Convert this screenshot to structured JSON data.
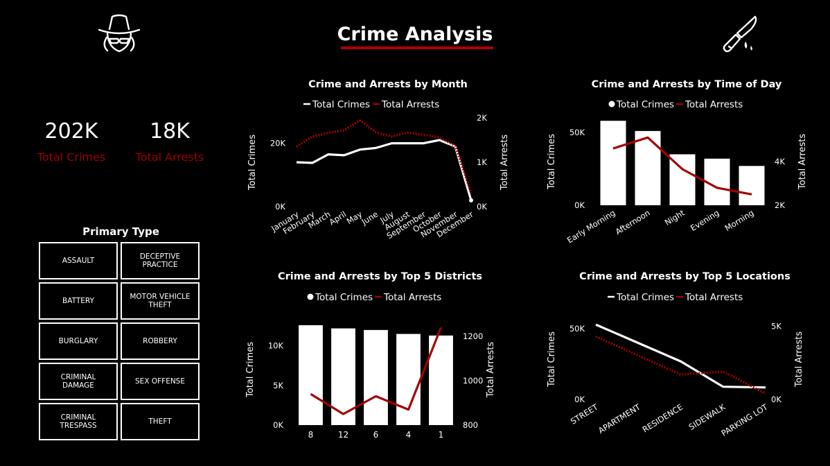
{
  "title": "Crime Analysis",
  "kpis": {
    "total_crimes_value": "202K",
    "total_crimes_label": "Total Crimes",
    "total_arrests_value": "18K",
    "total_arrests_label": "Total Arrests"
  },
  "slicer": {
    "title": "Primary Type",
    "items": [
      "ASSAULT",
      "DECEPTIVE PRACTICE",
      "BATTERY",
      "MOTOR VEHICLE THEFT",
      "BURGLARY",
      "ROBBERY",
      "CRIMINAL DAMAGE",
      "SEX OFFENSE",
      "CRIMINAL TRESPASS",
      "THEFT"
    ]
  },
  "icons": {
    "left": "detective-icon",
    "right": "knife-icon"
  },
  "colors": {
    "crimes": "#ffffff",
    "arrests": "#a50000",
    "background": "#000000"
  },
  "chart_data": [
    {
      "type": "line",
      "title": "Crime and Arrests by Month",
      "categories": [
        "January",
        "February",
        "March",
        "April",
        "May",
        "June",
        "July",
        "August",
        "September",
        "October",
        "November",
        "December"
      ],
      "series": [
        {
          "name": "Total Crimes",
          "axis": "left",
          "style": "solid",
          "values": [
            14000,
            13800,
            16500,
            16200,
            18000,
            18500,
            20000,
            20000,
            20000,
            21000,
            19000,
            2000
          ]
        },
        {
          "name": "Total Arrests",
          "axis": "right",
          "style": "dotted",
          "values": [
            1350,
            1580,
            1660,
            1720,
            1940,
            1680,
            1580,
            1670,
            1620,
            1560,
            1370,
            300
          ]
        }
      ],
      "left_axis": {
        "label": "Total Crimes",
        "min": 0,
        "max": 28000,
        "ticks": [
          0,
          20000
        ],
        "tick_labels": [
          "0K",
          "20K"
        ]
      },
      "right_axis": {
        "label": "Total Arrests",
        "min": 0,
        "max": 2000,
        "ticks": [
          0,
          1000,
          2000
        ],
        "tick_labels": [
          "0K",
          "1K",
          "2K"
        ]
      },
      "legend": [
        "Total Crimes",
        "Total Arrests"
      ]
    },
    {
      "type": "bar",
      "title": "Crime and Arrests by Time of Day",
      "categories": [
        "Early Morning",
        "Afternoon",
        "Night",
        "Evening",
        "Morning"
      ],
      "series": [
        {
          "name": "Total Crimes",
          "axis": "left",
          "kind": "bar",
          "values": [
            58000,
            51000,
            35000,
            32000,
            27000
          ]
        },
        {
          "name": "Total Arrests",
          "axis": "right",
          "kind": "line",
          "values": [
            4600,
            5100,
            3650,
            2800,
            2500
          ]
        }
      ],
      "left_axis": {
        "label": "Total Crimes",
        "min": 0,
        "max": 60000,
        "ticks": [
          0,
          50000
        ],
        "tick_labels": [
          "0K",
          "50K"
        ]
      },
      "right_axis": {
        "label": "Total Arrests",
        "min": 2000,
        "max": 6000,
        "ticks": [
          2000,
          4000
        ],
        "tick_labels": [
          "2K",
          "4K"
        ]
      },
      "legend": [
        "Total Crimes",
        "Total Arrests"
      ]
    },
    {
      "type": "bar",
      "title": "Crime and Arrests by Top 5 Districts",
      "categories": [
        "8",
        "12",
        "6",
        "4",
        "1"
      ],
      "series": [
        {
          "name": "Total Crimes",
          "axis": "left",
          "kind": "bar",
          "values": [
            12600,
            12200,
            12000,
            11500,
            11300
          ]
        },
        {
          "name": "Total Arrests",
          "axis": "right",
          "kind": "line",
          "values": [
            940,
            850,
            930,
            870,
            1240
          ]
        }
      ],
      "left_axis": {
        "label": "Total Crimes",
        "min": 0,
        "max": 14000,
        "ticks": [
          0,
          5000,
          10000
        ],
        "tick_labels": [
          "0K",
          "5K",
          "10K"
        ]
      },
      "right_axis": {
        "label": "Total Arrests",
        "min": 800,
        "max": 1300,
        "ticks": [
          800,
          1000,
          1200
        ],
        "tick_labels": [
          "800",
          "1000",
          "1200"
        ]
      },
      "legend": [
        "Total Crimes",
        "Total Arrests"
      ]
    },
    {
      "type": "line",
      "title": "Crime and Arrests by Top 5 Locations",
      "categories": [
        "STREET",
        "APARTMENT",
        "RESIDENCE",
        "SIDEWALK",
        "PARKING LOT"
      ],
      "series": [
        {
          "name": "Total Crimes",
          "axis": "left",
          "style": "solid",
          "values": [
            53000,
            40000,
            27000,
            9000,
            8500
          ]
        },
        {
          "name": "Total Arrests",
          "axis": "right",
          "style": "dotted",
          "values": [
            4300,
            3000,
            1700,
            1900,
            400
          ]
        }
      ],
      "left_axis": {
        "label": "Total Crimes",
        "min": 0,
        "max": 57000,
        "ticks": [
          0,
          50000
        ],
        "tick_labels": [
          "0K",
          "50K"
        ]
      },
      "right_axis": {
        "label": "Total Arrests",
        "min": 0,
        "max": 5500,
        "ticks": [
          0,
          5000
        ],
        "tick_labels": [
          "0K",
          "5K"
        ]
      },
      "legend": [
        "Total Crimes",
        "Total Arrests"
      ]
    }
  ]
}
